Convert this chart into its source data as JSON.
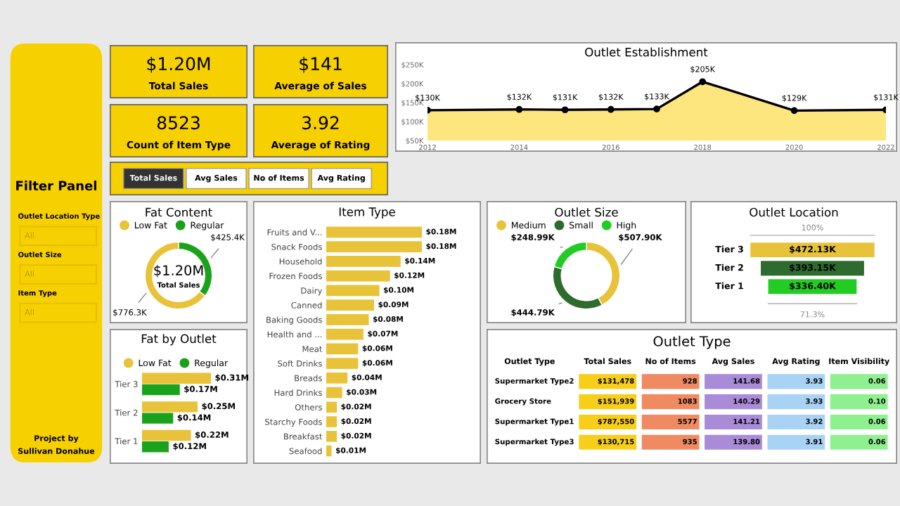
{
  "chart_data": [
    {
      "type": "other",
      "annotations": [
        "Filter Panel",
        "Outlet Location Type",
        "All",
        "Outlet Size",
        "All",
        "Item Type",
        "All",
        "Project by",
        "Sullivan Donahue"
      ]
    },
    {
      "type": "other",
      "annotations": [
        "$1.20M",
        "Total Sales",
        "$141",
        "Average of Sales",
        "8523",
        "Count of Item Type",
        "3.92",
        "Average of Rating",
        "Total Sales",
        "Avg Sales",
        "No of Items",
        "Avg Rating"
      ]
    },
    {
      "type": "area",
      "title": "Outlet Establishment",
      "x": [
        2012,
        2014,
        2015,
        2016,
        2017,
        2018,
        2020,
        2022
      ],
      "series": [
        {
          "color": "#fde67e",
          "values": [
            130,
            132,
            131,
            132,
            133,
            205,
            129,
            131
          ],
          "value_labels": [
            "$130K",
            "$132K",
            "$131K",
            "$132K",
            "$133K",
            "$205K",
            "$129K",
            "$131K"
          ]
        }
      ],
      "xlim": [
        2012,
        2022
      ],
      "xticks": [
        2012,
        2014,
        2016,
        2018,
        2020,
        2022
      ],
      "ylim": [
        50,
        250
      ],
      "yticks": [
        {
          "value": 50,
          "label": "$50K"
        },
        {
          "value": 100,
          "label": "$100K"
        },
        {
          "value": 150,
          "label": "$150K"
        },
        {
          "value": 200,
          "label": "$200K"
        },
        {
          "value": 250,
          "label": "$250K"
        }
      ],
      "marker": "circle"
    },
    {
      "type": "donut",
      "title": "Fat Content",
      "categories": [
        "Low Fat",
        "Regular"
      ],
      "values": [
        776.3,
        425.4
      ],
      "value_labels": [
        "$776.3K",
        "$425.4K"
      ],
      "colors": [
        "#e8c33a",
        "#1aa31a"
      ],
      "annotations": [
        "$1.20M",
        "Total Sales"
      ],
      "legend": "top left"
    },
    {
      "type": "bar",
      "title": "Fat by Outlet",
      "orientation": "horizontal",
      "categories": [
        "Tier 3",
        "Tier 2",
        "Tier 1"
      ],
      "series": [
        {
          "name": "Low Fat",
          "color": "#e8c33a",
          "values": [
            0.31,
            0.25,
            0.22
          ],
          "value_labels": [
            "$0.31M",
            "$0.25M",
            "$0.22M"
          ]
        },
        {
          "name": "Regular",
          "color": "#1aa31a",
          "values": [
            0.17,
            0.14,
            0.12
          ],
          "value_labels": [
            "$0.17M",
            "$0.14M",
            "$0.12M"
          ]
        }
      ],
      "legend": "top left"
    },
    {
      "type": "bar",
      "title": "Item Type",
      "orientation": "horizontal",
      "categories": [
        "Fruits and V...",
        "Snack Foods",
        "Household",
        "Frozen Foods",
        "Dairy",
        "Canned",
        "Baking Goods",
        "Health and ...",
        "Meat",
        "Soft Drinks",
        "Breads",
        "Hard Drinks",
        "Others",
        "Starchy Foods",
        "Breakfast",
        "Seafood"
      ],
      "values": [
        0.18,
        0.18,
        0.14,
        0.12,
        0.1,
        0.09,
        0.08,
        0.07,
        0.06,
        0.06,
        0.04,
        0.03,
        0.02,
        0.02,
        0.02,
        0.01
      ],
      "value_labels": [
        "$0.18M",
        "$0.18M",
        "$0.14M",
        "$0.12M",
        "$0.10M",
        "$0.09M",
        "$0.08M",
        "$0.07M",
        "$0.06M",
        "$0.06M",
        "$0.04M",
        "$0.03M",
        "$0.02M",
        "$0.02M",
        "$0.02M",
        "$0.01M"
      ],
      "color": "#e8c33a"
    },
    {
      "type": "donut",
      "title": "Outlet Size",
      "categories": [
        "Medium",
        "Small",
        "High"
      ],
      "values": [
        507.9,
        444.79,
        248.99
      ],
      "value_labels": [
        "$507.90K",
        "$444.79K",
        "$248.99K"
      ],
      "colors": [
        "#e8c33a",
        "#2e6b2e",
        "#22cc22"
      ],
      "legend": "top left"
    },
    {
      "type": "other",
      "title": "Outlet Location",
      "categories": [
        "Tier 3",
        "Tier 2",
        "Tier 1"
      ],
      "values": [
        472.13,
        393.15,
        336.4
      ],
      "value_labels": [
        "$472.13K",
        "$393.15K",
        "$336.40K"
      ],
      "colors": [
        "#e8c33a",
        "#2e6b2e",
        "#22cc22"
      ],
      "annotations": [
        "100%",
        "71.3%"
      ]
    },
    {
      "type": "other",
      "title": "Outlet Type",
      "ylabel": "Outlet Type",
      "categories": [
        "Total Sales",
        "No of Items",
        "Avg Sales",
        "Avg Rating",
        "Item Visibility"
      ],
      "y_categories": [
        "Supermarket Type2",
        "Grocery Store",
        "Supermarket Type1",
        "Supermarket Type3"
      ],
      "cell_labels": [
        [
          "$131,478",
          "928",
          "141.68",
          "3.93",
          "0.06"
        ],
        [
          "$151,939",
          "1083",
          "140.29",
          "3.93",
          "0.10"
        ],
        [
          "$787,550",
          "5577",
          "141.21",
          "3.92",
          "0.06"
        ],
        [
          "$130,715",
          "935",
          "139.80",
          "3.91",
          "0.06"
        ]
      ],
      "colors": [
        "#f7cf1a",
        "#ef8a62",
        "#a98bd8",
        "#a9d3f5",
        "#8ff08f"
      ]
    }
  ]
}
